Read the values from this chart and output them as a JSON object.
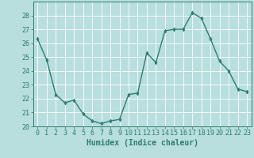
{
  "x": [
    0,
    1,
    2,
    3,
    4,
    5,
    6,
    7,
    8,
    9,
    10,
    11,
    12,
    13,
    14,
    15,
    16,
    17,
    18,
    19,
    20,
    21,
    22,
    23
  ],
  "y": [
    26.3,
    24.8,
    22.3,
    21.7,
    21.9,
    20.9,
    20.4,
    20.2,
    20.4,
    20.5,
    22.3,
    22.4,
    25.3,
    24.6,
    26.9,
    27.0,
    27.0,
    28.2,
    27.8,
    26.3,
    24.7,
    24.0,
    22.7,
    22.5
  ],
  "line_color": "#2e7d6e",
  "marker": "d",
  "markersize": 2.5,
  "linewidth": 1.0,
  "bg_color": "#b8dede",
  "grid_color": "#ffffff",
  "xlabel": "Humidex (Indice chaleur)",
  "xlim": [
    -0.5,
    23.5
  ],
  "ylim": [
    20,
    29
  ],
  "yticks": [
    20,
    21,
    22,
    23,
    24,
    25,
    26,
    27,
    28
  ],
  "xticks": [
    0,
    1,
    2,
    3,
    4,
    5,
    6,
    7,
    8,
    9,
    10,
    11,
    12,
    13,
    14,
    15,
    16,
    17,
    18,
    19,
    20,
    21,
    22,
    23
  ],
  "tick_color": "#2e7d6e",
  "label_color": "#2e7d6e",
  "xlabel_fontsize": 7.0,
  "tick_fontsize": 6.0
}
